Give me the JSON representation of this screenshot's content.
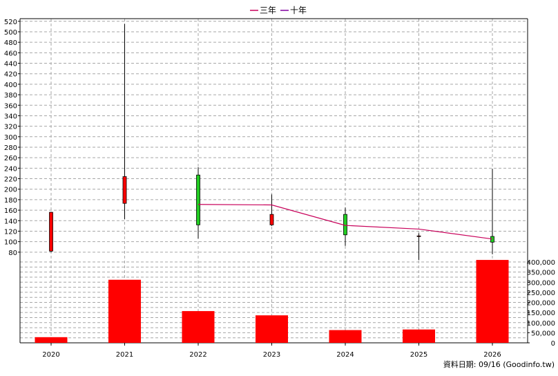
{
  "legend": {
    "items": [
      {
        "label": "三年",
        "color": "#c8005a"
      },
      {
        "label": "十年",
        "color": "#8000a0"
      }
    ]
  },
  "footer": {
    "text": "資料日期: 09/16  (Goodinfo.tw)"
  },
  "colors": {
    "up_candle": "#ff0000",
    "down_candle": "#22cc22",
    "volume_bar": "#ff0000",
    "ma_line": "#c8005a"
  },
  "chart_data": [
    {
      "type": "candlestick",
      "categories": [
        "2020",
        "2021",
        "2022",
        "2023",
        "2024",
        "2025",
        "2026"
      ],
      "ohlc": [
        {
          "x": "2020",
          "open": 82,
          "high": 157,
          "low": 80,
          "close": 156,
          "direction": "up"
        },
        {
          "x": "2021",
          "open": 173,
          "high": 515,
          "low": 143,
          "close": 224,
          "direction": "up"
        },
        {
          "x": "2022",
          "open": 227,
          "high": 242,
          "low": 106,
          "close": 132,
          "direction": "down"
        },
        {
          "x": "2023",
          "open": 132,
          "high": 190,
          "low": 130,
          "close": 152,
          "direction": "up"
        },
        {
          "x": "2024",
          "open": 152,
          "high": 165,
          "low": 92,
          "close": 113,
          "direction": "down"
        },
        {
          "x": "2025",
          "open": 110,
          "high": 116,
          "low": 65,
          "close": 111,
          "direction": "up"
        },
        {
          "x": "2026",
          "open": 110,
          "high": 239,
          "low": 76,
          "close": 99,
          "direction": "down"
        }
      ],
      "series": [
        {
          "name": "三年",
          "x": [
            "2022",
            "2023",
            "2024",
            "2025",
            "2026"
          ],
          "values": [
            171,
            170,
            131,
            124,
            105
          ]
        }
      ],
      "y_ticks": [
        80,
        100,
        120,
        140,
        160,
        180,
        200,
        220,
        240,
        260,
        280,
        300,
        320,
        340,
        360,
        380,
        400,
        420,
        440,
        460,
        480,
        500,
        520
      ],
      "ylim": [
        60,
        525
      ],
      "y_axis_side": "left",
      "grid": true,
      "legend_position": "top-center"
    },
    {
      "type": "bar",
      "categories": [
        "2020",
        "2021",
        "2022",
        "2023",
        "2024",
        "2025",
        "2026"
      ],
      "values": [
        28000,
        312000,
        157000,
        136000,
        63000,
        66000,
        410000
      ],
      "y_ticks": [
        0,
        50000,
        100000,
        150000,
        200000,
        250000,
        300000,
        350000,
        400000
      ],
      "y_tick_labels": [
        "0",
        "50,000",
        "100,000",
        "150,000",
        "200,000",
        "250,000",
        "300,000",
        "350,000",
        "400,000"
      ],
      "ylim": [
        0,
        400000
      ],
      "y_axis_side": "right",
      "grid": true
    }
  ]
}
